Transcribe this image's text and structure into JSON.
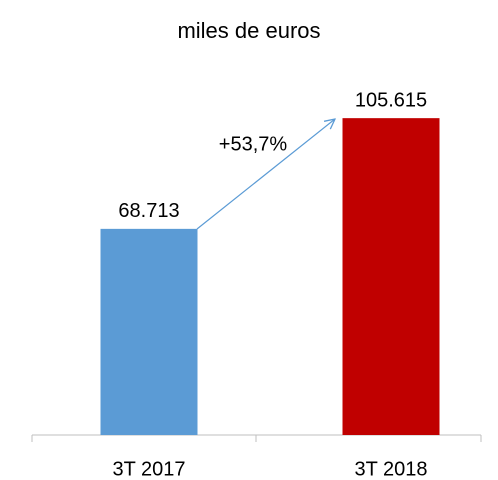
{
  "chart_data": {
    "type": "bar",
    "title": "miles de euros",
    "categories": [
      "3T 2017",
      "3T 2018"
    ],
    "values": [
      68713,
      105615
    ],
    "value_labels": [
      "68.713",
      "105.615"
    ],
    "colors": [
      "#5b9bd5",
      "#c00000"
    ],
    "ylim": [
      0,
      120000
    ],
    "annotation": "+53,7%"
  }
}
